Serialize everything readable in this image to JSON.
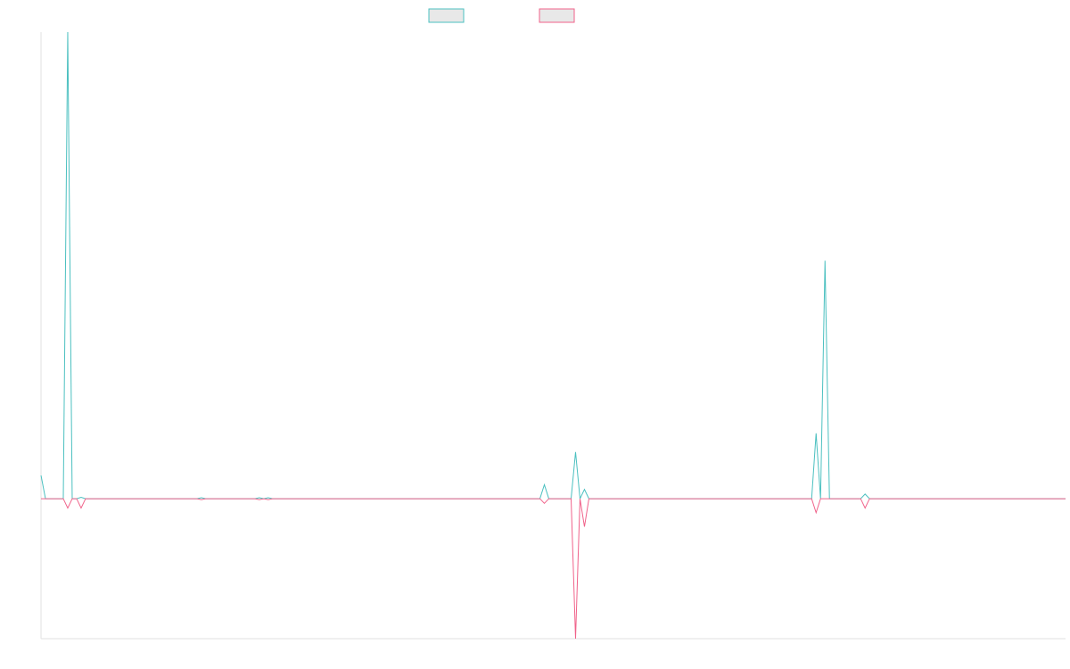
{
  "chart_data": {
    "type": "line",
    "x": [
      0,
      1,
      5,
      6,
      7,
      8,
      9,
      10,
      35,
      36,
      37,
      48,
      49,
      50,
      51,
      52,
      112,
      113,
      114,
      119,
      120,
      121,
      122,
      123,
      173,
      174,
      175,
      176,
      177,
      184,
      185,
      186,
      230
    ],
    "xlim": [
      0,
      230
    ],
    "ylim": [
      -30,
      100
    ],
    "series": [
      {
        "color": "#4bc0c0",
        "values": [
          5,
          0,
          0,
          100,
          0,
          0,
          0.3,
          0,
          0,
          0.2,
          0,
          0,
          0.2,
          0,
          0.2,
          0,
          0,
          3,
          0,
          0,
          10,
          0,
          2,
          0,
          0,
          14,
          0,
          51,
          0,
          0,
          1,
          0,
          0
        ]
      },
      {
        "color": "#f0628a",
        "values": [
          0,
          0,
          0,
          -2,
          0,
          0,
          -2,
          0,
          0,
          -0.2,
          0,
          0,
          -0.2,
          0,
          -0.2,
          0,
          0,
          -1,
          0,
          0,
          -30,
          0,
          -6,
          0,
          0,
          -3,
          0,
          0,
          0,
          0,
          -2,
          0,
          0
        ]
      }
    ]
  }
}
